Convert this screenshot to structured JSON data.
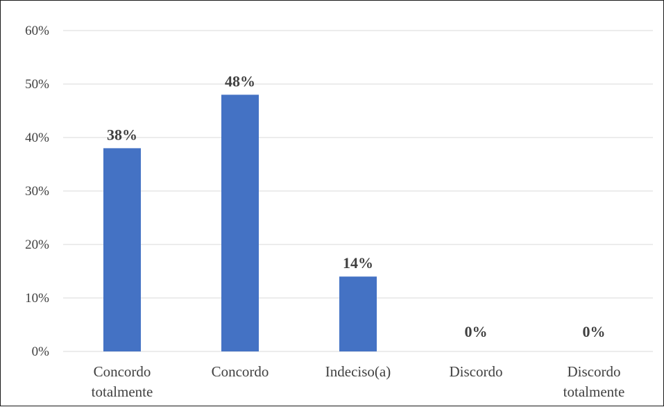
{
  "chart_data": {
    "type": "bar",
    "categories": [
      "Concordo totalmente",
      "Concordo",
      "Indeciso(a)",
      "Discordo",
      "Discordo totalmente"
    ],
    "category_lines": [
      [
        "Concordo",
        "totalmente"
      ],
      [
        "Concordo"
      ],
      [
        "Indeciso(a)"
      ],
      [
        "Discordo"
      ],
      [
        "Discordo",
        "totalmente"
      ]
    ],
    "values": [
      38,
      48,
      14,
      0,
      0
    ],
    "data_labels": [
      "38%",
      "48%",
      "14%",
      "0%",
      "0%"
    ],
    "y_ticks": [
      "0%",
      "10%",
      "20%",
      "30%",
      "40%",
      "50%",
      "60%"
    ],
    "ylim": [
      0,
      60
    ],
    "grid": true,
    "bar_color": "#4472C4",
    "title": "",
    "xlabel": "",
    "ylabel": ""
  }
}
